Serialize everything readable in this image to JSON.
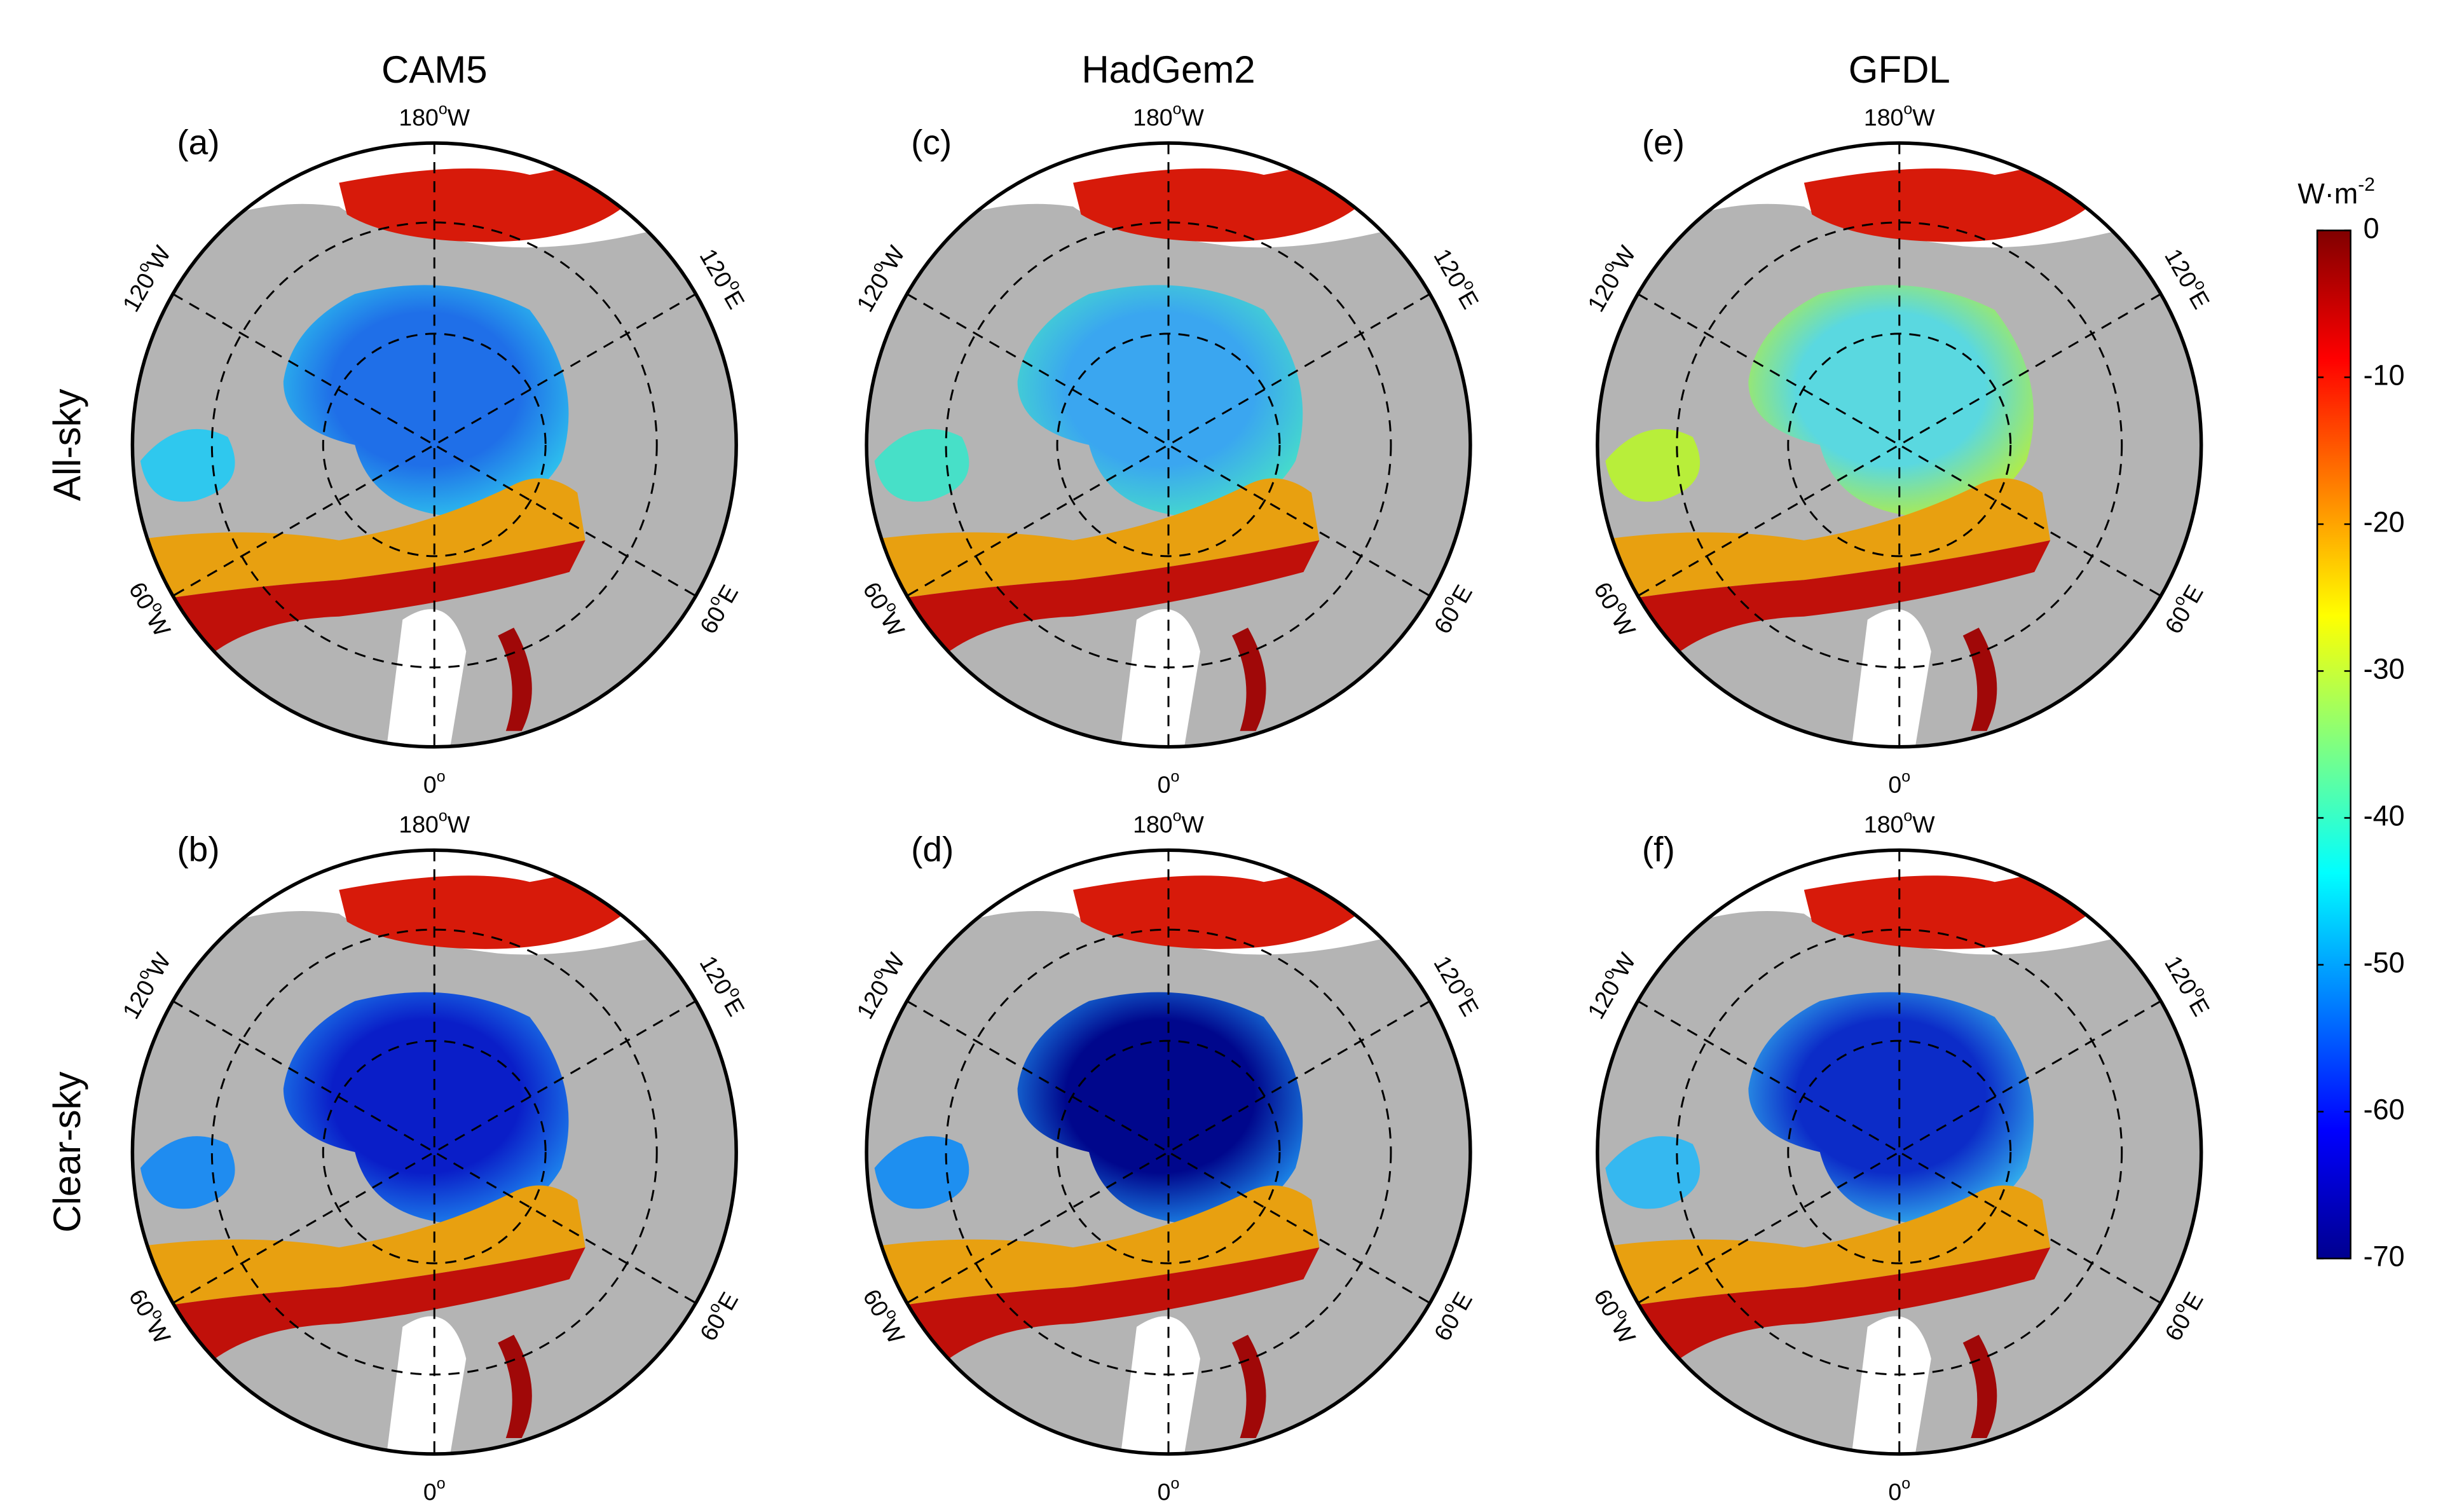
{
  "columns": [
    "CAM5",
    "HadGem2",
    "GFDL"
  ],
  "rows": [
    "All-sky",
    "Clear-sky"
  ],
  "panels": [
    {
      "letter": "(a)",
      "core_color": "#1f6fe8",
      "edge_color": "#2fc8ee"
    },
    {
      "letter": "(b)",
      "core_color": "#0a1ec8",
      "edge_color": "#1f8cf0"
    },
    {
      "letter": "(c)",
      "core_color": "#3aa6f0",
      "edge_color": "#47e0c8"
    },
    {
      "letter": "(d)",
      "core_color": "#00078c",
      "edge_color": "#1e8ff0"
    },
    {
      "letter": "(e)",
      "core_color": "#5ad8e0",
      "edge_color": "#b8ee3a"
    },
    {
      "letter": "(f)",
      "core_color": "#0c2cc8",
      "edge_color": "#35b8f0"
    }
  ],
  "lon_labels": [
    {
      "number": "180",
      "sup": "o",
      "hemi": "W"
    },
    {
      "number": "120",
      "sup": "o",
      "hemi": "W"
    },
    {
      "number": "120",
      "sup": "o",
      "hemi": "E"
    },
    {
      "number": "60",
      "sup": "o",
      "hemi": "W"
    },
    {
      "number": "60",
      "sup": "o",
      "hemi": "E"
    },
    {
      "number": "0",
      "sup": "o",
      "hemi": ""
    }
  ],
  "colorbar": {
    "unit": "W·m",
    "unit_exp": "-2",
    "lim": [
      -70,
      0
    ],
    "ticks": [
      0,
      -10,
      -20,
      -30,
      -40,
      -50,
      -60,
      -70
    ],
    "colormap": [
      "#00008f",
      "#0000ff",
      "#0080ff",
      "#00ffff",
      "#80ff80",
      "#ffff00",
      "#ff8000",
      "#ff0000",
      "#800000"
    ]
  }
}
